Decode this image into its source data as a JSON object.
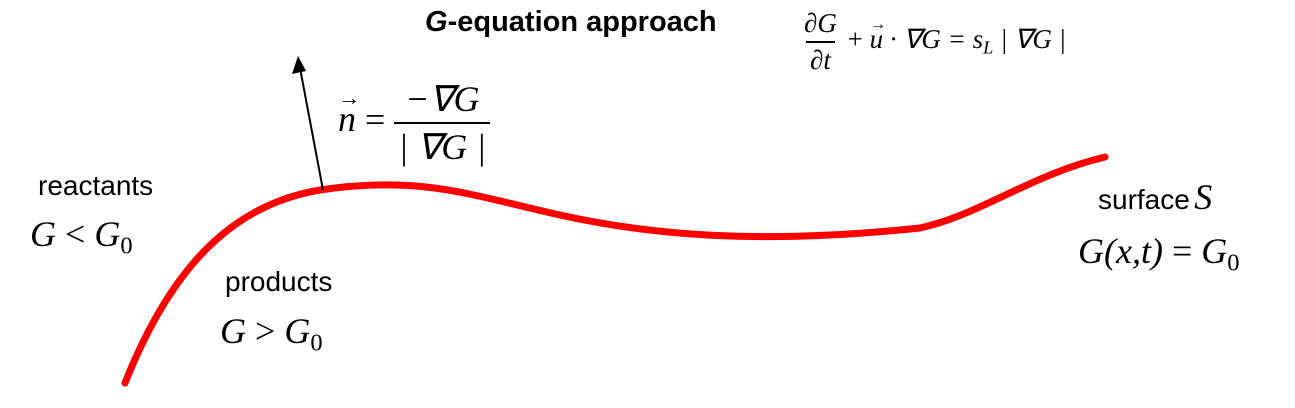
{
  "title": {
    "italic_part": "G",
    "rest": "-equation approach"
  },
  "equation": {
    "lhs_num": "∂G",
    "lhs_den": "∂t",
    "plus": "+",
    "u": "u",
    "dot_grad": "· ∇G =",
    "sL_base": "s",
    "sL_sub": "L",
    "abs": "| ∇G |"
  },
  "normal": {
    "n": "n",
    "equals": "=",
    "num": "−∇G",
    "den": "| ∇G |"
  },
  "reactants": {
    "label": "reactants",
    "G": "G",
    "op": "<",
    "G0_base": "G",
    "G0_sub": "0"
  },
  "products": {
    "label": "products",
    "G": "G",
    "op": ">",
    "G0_base": "G",
    "G0_sub": "0"
  },
  "surface": {
    "label": "surface",
    "S": "S",
    "func": "G(x,t)",
    "op": "=",
    "G0_base": "G",
    "G0_sub": "0"
  },
  "colors": {
    "flame_front": "#ff0000",
    "arrow": "#000000"
  }
}
